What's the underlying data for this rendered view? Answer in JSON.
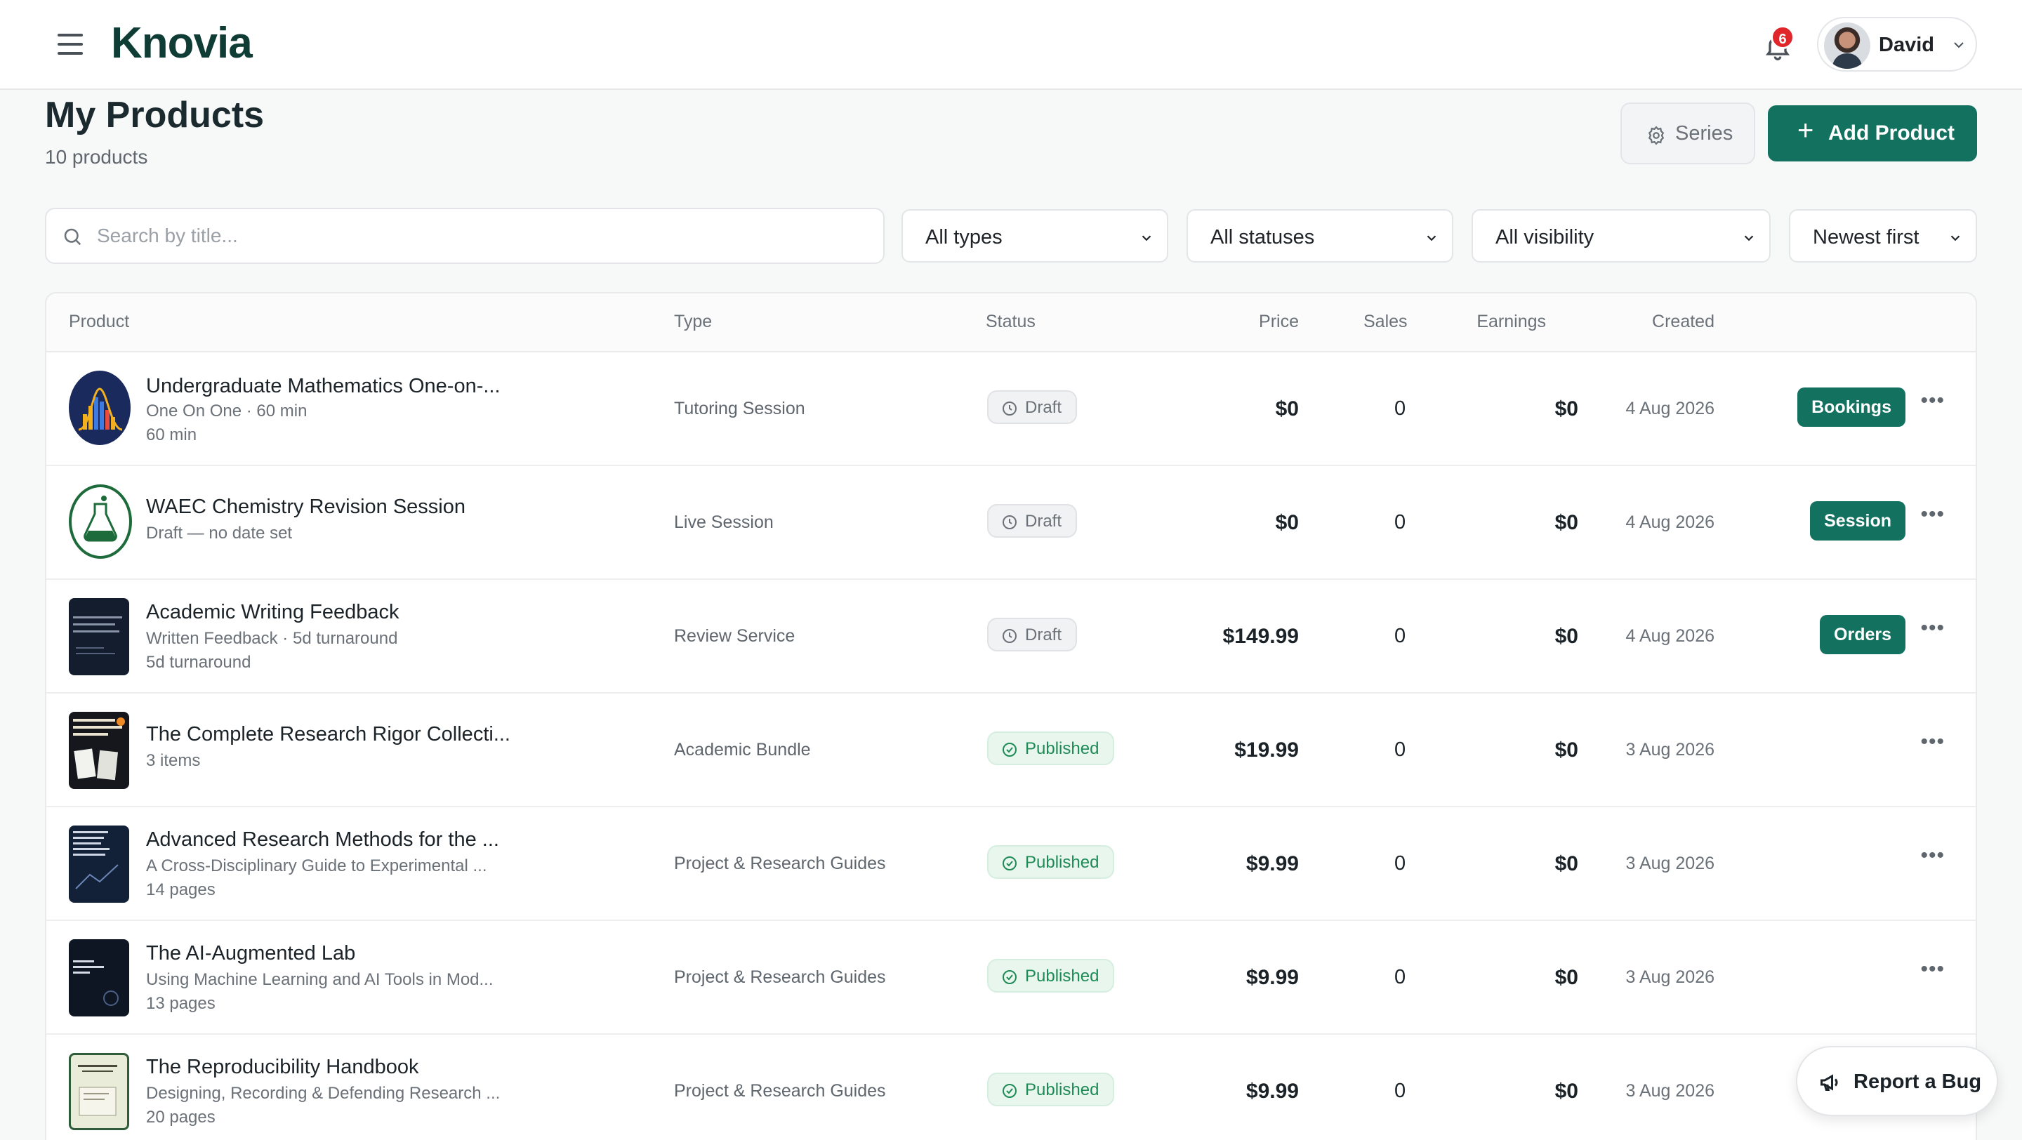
{
  "app": {
    "logo": "Knovia",
    "notification_count": "6",
    "user_name": "David"
  },
  "page": {
    "title": "My Products",
    "subtitle": "10 products",
    "series_label": "Series",
    "add_label": "Add Product"
  },
  "filters": {
    "search_placeholder": "Search by title...",
    "type": "All types",
    "status": "All statuses",
    "visibility": "All visibility",
    "sort": "Newest first"
  },
  "table": {
    "headers": {
      "product": "Product",
      "type": "Type",
      "status": "Status",
      "price": "Price",
      "sales": "Sales",
      "earnings": "Earnings",
      "created": "Created"
    },
    "rows": [
      {
        "title": "Undergraduate Mathematics One-on-...",
        "sub1": "One On One · 60 min",
        "sub2": "60 min",
        "type": "Tutoring Session",
        "status": "Draft",
        "price": "$0",
        "sales": "0",
        "earnings": "$0",
        "created": "4 Aug 2026",
        "action": "Bookings"
      },
      {
        "title": "WAEC Chemistry Revision Session",
        "sub1": "Draft — no date set",
        "sub2": "",
        "type": "Live Session",
        "status": "Draft",
        "price": "$0",
        "sales": "0",
        "earnings": "$0",
        "created": "4 Aug 2026",
        "action": "Session"
      },
      {
        "title": "Academic Writing Feedback",
        "sub1": "Written Feedback · 5d turnaround",
        "sub2": "5d turnaround",
        "type": "Review Service",
        "status": "Draft",
        "price": "$149.99",
        "sales": "0",
        "earnings": "$0",
        "created": "4 Aug 2026",
        "action": "Orders"
      },
      {
        "title": "The Complete Research Rigor Collecti...",
        "sub1": "3 items",
        "sub2": "",
        "type": "Academic Bundle",
        "status": "Published",
        "price": "$19.99",
        "sales": "0",
        "earnings": "$0",
        "created": "3 Aug 2026",
        "action": ""
      },
      {
        "title": "Advanced Research Methods for the ...",
        "sub1": "A Cross-Disciplinary Guide to Experimental ...",
        "sub2": "14 pages",
        "type": "Project & Research Guides",
        "status": "Published",
        "price": "$9.99",
        "sales": "0",
        "earnings": "$0",
        "created": "3 Aug 2026",
        "action": ""
      },
      {
        "title": "The AI-Augmented Lab",
        "sub1": "Using Machine Learning and AI Tools in Mod...",
        "sub2": "13 pages",
        "type": "Project & Research Guides",
        "status": "Published",
        "price": "$9.99",
        "sales": "0",
        "earnings": "$0",
        "created": "3 Aug 2026",
        "action": ""
      },
      {
        "title": "The Reproducibility Handbook",
        "sub1": "Designing, Recording & Defending Research ...",
        "sub2": "20 pages",
        "type": "Project & Research Guides",
        "status": "Published",
        "price": "$9.99",
        "sales": "0",
        "earnings": "$0",
        "created": "3 Aug 2026",
        "action": ""
      }
    ]
  },
  "report_bug_label": "Report a Bug",
  "colors": {
    "accent": "#12715f",
    "logo": "#0f3d35",
    "badge_red": "#e0262b",
    "published": "#1e8a56"
  }
}
